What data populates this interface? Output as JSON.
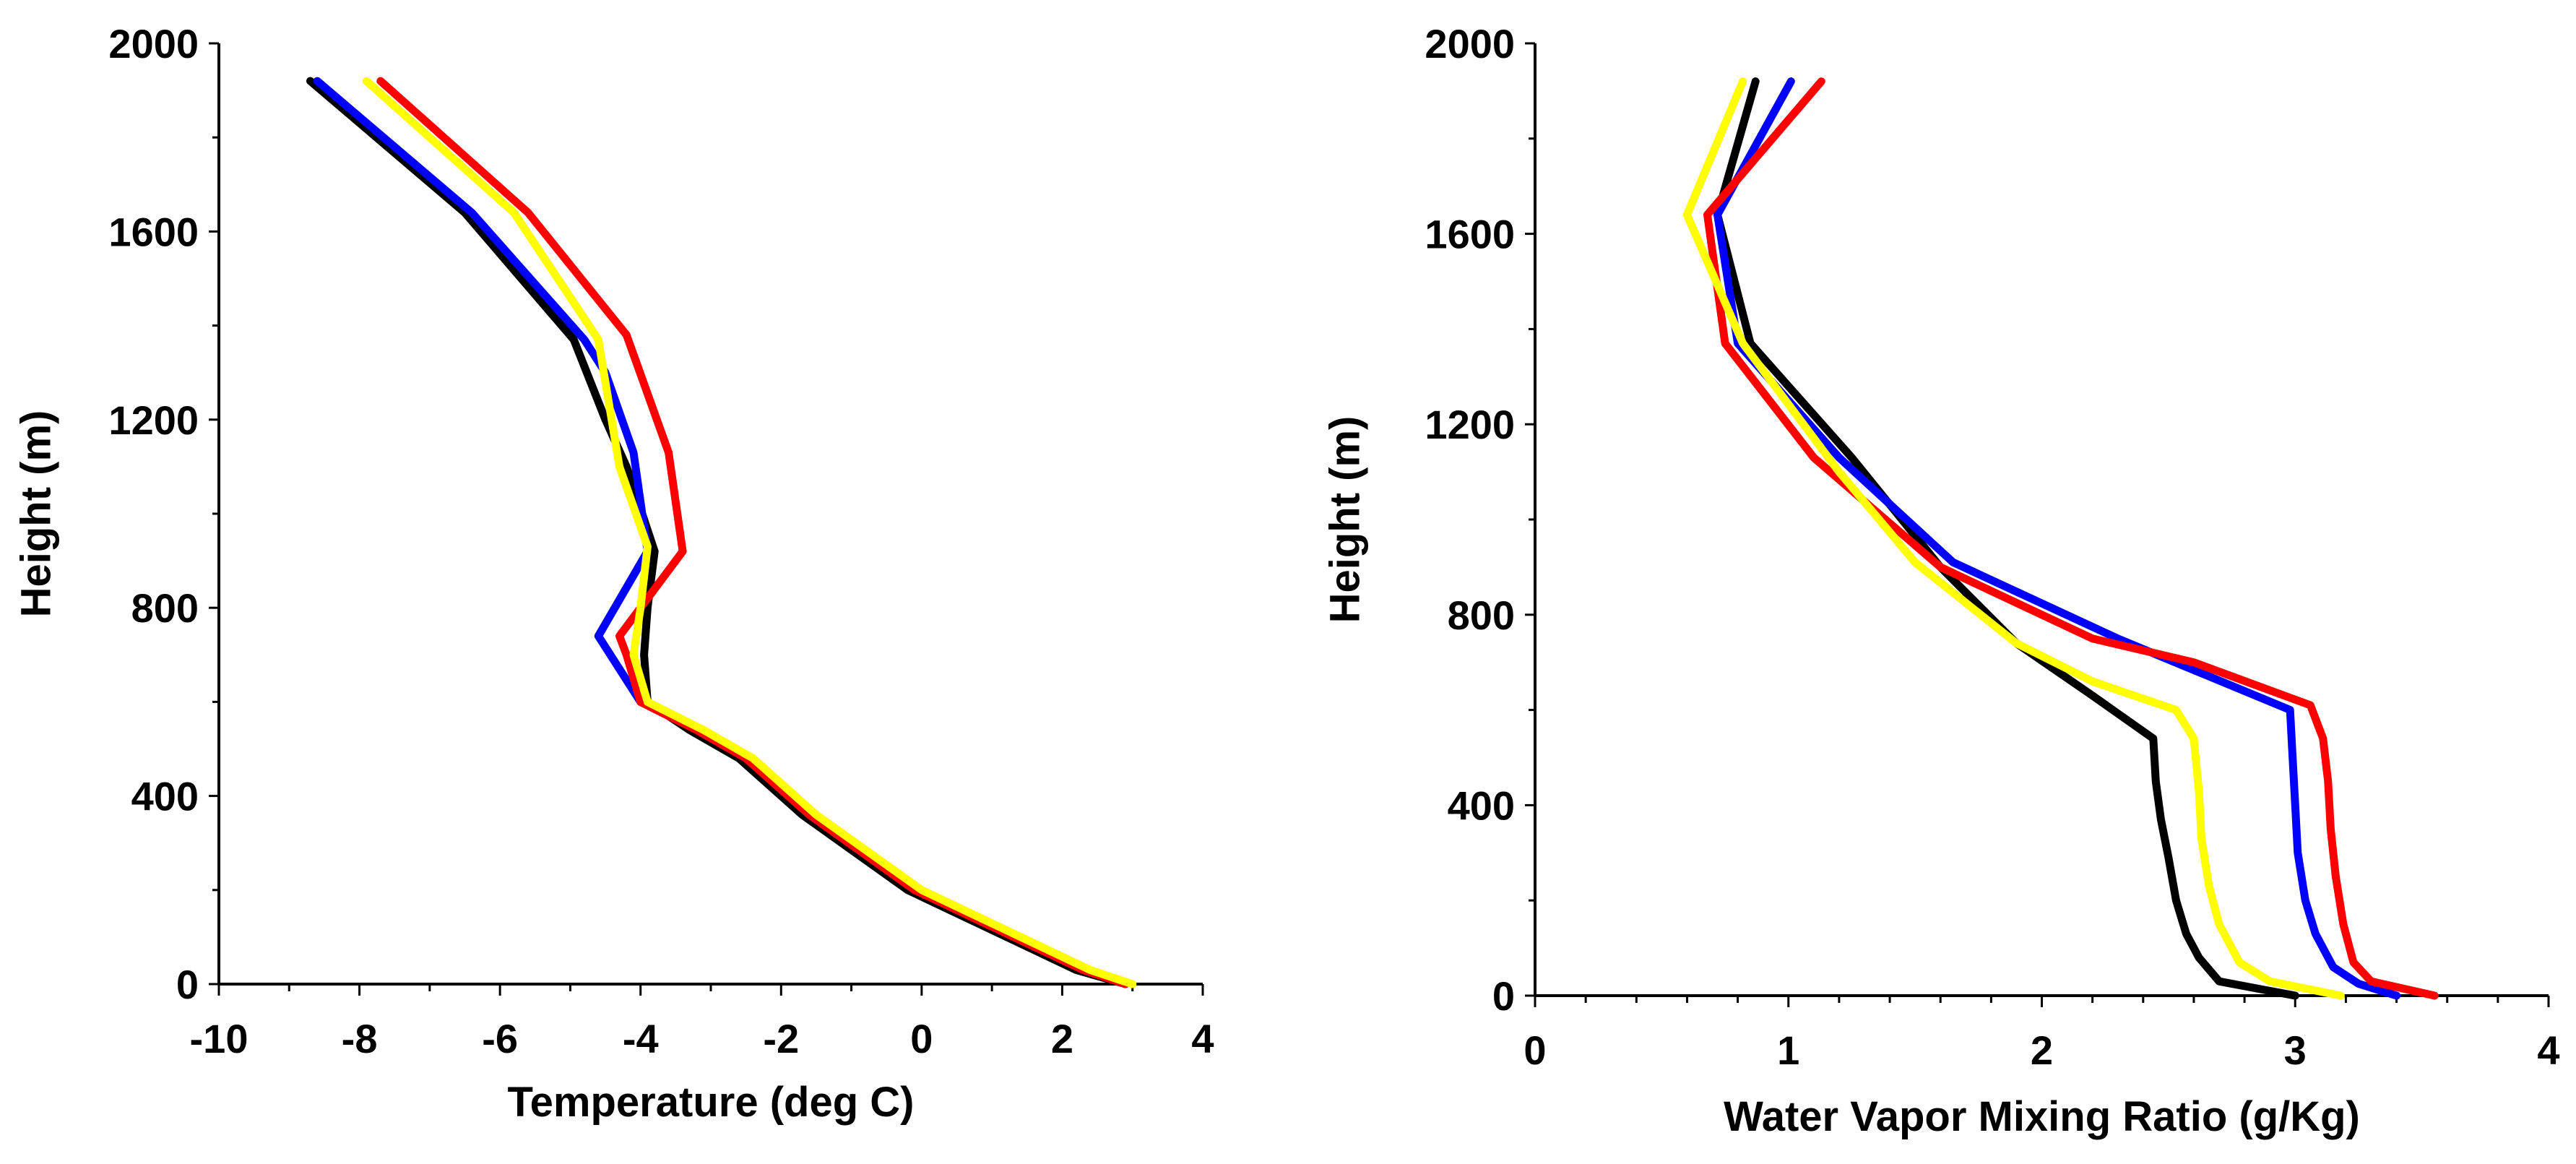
{
  "chart_data": [
    {
      "type": "line",
      "title": "",
      "xlabel": "Temperature (deg C)",
      "ylabel": "Height (m)",
      "xlim": [
        -10,
        4
      ],
      "ylim": [
        0,
        2000
      ],
      "xticks": [
        -10,
        -8,
        -6,
        -4,
        -2,
        0,
        2,
        4
      ],
      "yticks": [
        0,
        400,
        800,
        1200,
        1600,
        2000
      ],
      "grid": false,
      "series": [
        {
          "name": "black",
          "color": "#000000",
          "points": [
            [
              2.9,
              0
            ],
            [
              2.2,
              30
            ],
            [
              -0.2,
              200
            ],
            [
              -1.7,
              360
            ],
            [
              -2.6,
              480
            ],
            [
              -3.3,
              540
            ],
            [
              -3.9,
              600
            ],
            [
              -3.95,
              700
            ],
            [
              -3.9,
              800
            ],
            [
              -3.8,
              920
            ],
            [
              -4.2,
              1100
            ],
            [
              -4.5,
              1200
            ],
            [
              -4.95,
              1370
            ],
            [
              -6.5,
              1640
            ],
            [
              -8.7,
              1920
            ]
          ]
        },
        {
          "name": "blue",
          "color": "#0000ff",
          "points": [
            [
              2.9,
              0
            ],
            [
              2.3,
              30
            ],
            [
              -0.1,
              200
            ],
            [
              -1.6,
              360
            ],
            [
              -2.5,
              480
            ],
            [
              -3.2,
              540
            ],
            [
              -4.0,
              600
            ],
            [
              -4.6,
              740
            ],
            [
              -3.9,
              920
            ],
            [
              -4.1,
              1130
            ],
            [
              -4.5,
              1300
            ],
            [
              -4.8,
              1370
            ],
            [
              -6.4,
              1640
            ],
            [
              -8.6,
              1920
            ]
          ]
        },
        {
          "name": "red",
          "color": "#ff0000",
          "points": [
            [
              2.9,
              0
            ],
            [
              2.3,
              30
            ],
            [
              -0.1,
              200
            ],
            [
              -1.6,
              360
            ],
            [
              -2.5,
              480
            ],
            [
              -3.2,
              540
            ],
            [
              -4.0,
              600
            ],
            [
              -4.2,
              700
            ],
            [
              -4.3,
              740
            ],
            [
              -3.4,
              920
            ],
            [
              -3.6,
              1130
            ],
            [
              -4.2,
              1380
            ],
            [
              -5.6,
              1640
            ],
            [
              -7.7,
              1920
            ]
          ]
        },
        {
          "name": "yellow",
          "color": "#ffff00",
          "points": [
            [
              3.0,
              0
            ],
            [
              2.4,
              30
            ],
            [
              0.0,
              200
            ],
            [
              -1.5,
              360
            ],
            [
              -2.4,
              480
            ],
            [
              -3.1,
              540
            ],
            [
              -3.9,
              600
            ],
            [
              -4.1,
              700
            ],
            [
              -4.0,
              800
            ],
            [
              -3.9,
              930
            ],
            [
              -4.3,
              1100
            ],
            [
              -4.6,
              1370
            ],
            [
              -5.8,
              1640
            ],
            [
              -7.9,
              1920
            ]
          ]
        }
      ]
    },
    {
      "type": "line",
      "title": "",
      "xlabel": "Water Vapor Mixing Ratio (g/Kg)",
      "ylabel": "Height (m)",
      "xlim": [
        0,
        4
      ],
      "ylim": [
        0,
        2000
      ],
      "xticks": [
        0,
        1,
        2,
        3,
        4
      ],
      "yticks": [
        0,
        400,
        800,
        1200,
        1600,
        2000
      ],
      "grid": false,
      "series": [
        {
          "name": "black",
          "color": "#000000",
          "points": [
            [
              3.0,
              0
            ],
            [
              2.85,
              15
            ],
            [
              2.7,
              30
            ],
            [
              2.62,
              80
            ],
            [
              2.57,
              130
            ],
            [
              2.53,
              200
            ],
            [
              2.5,
              290
            ],
            [
              2.47,
              370
            ],
            [
              2.45,
              450
            ],
            [
              2.44,
              540
            ],
            [
              2.2,
              630
            ],
            [
              1.9,
              740
            ],
            [
              1.6,
              900
            ],
            [
              1.25,
              1130
            ],
            [
              0.85,
              1370
            ],
            [
              0.72,
              1640
            ],
            [
              0.87,
              1920
            ]
          ]
        },
        {
          "name": "blue",
          "color": "#0000ff",
          "points": [
            [
              3.4,
              0
            ],
            [
              3.25,
              25
            ],
            [
              3.15,
              60
            ],
            [
              3.08,
              130
            ],
            [
              3.04,
              200
            ],
            [
              3.01,
              300
            ],
            [
              3.0,
              400
            ],
            [
              2.99,
              500
            ],
            [
              2.98,
              600
            ],
            [
              2.3,
              750
            ],
            [
              1.65,
              910
            ],
            [
              1.2,
              1130
            ],
            [
              0.8,
              1370
            ],
            [
              0.72,
              1640
            ],
            [
              1.01,
              1920
            ]
          ]
        },
        {
          "name": "red",
          "color": "#ff0000",
          "points": [
            [
              3.55,
              0
            ],
            [
              3.3,
              30
            ],
            [
              3.23,
              70
            ],
            [
              3.19,
              150
            ],
            [
              3.16,
              250
            ],
            [
              3.14,
              350
            ],
            [
              3.13,
              450
            ],
            [
              3.11,
              540
            ],
            [
              3.06,
              610
            ],
            [
              2.6,
              700
            ],
            [
              2.2,
              750
            ],
            [
              1.6,
              900
            ],
            [
              1.1,
              1130
            ],
            [
              0.75,
              1370
            ],
            [
              0.68,
              1640
            ],
            [
              1.13,
              1920
            ]
          ]
        },
        {
          "name": "yellow",
          "color": "#ffff00",
          "points": [
            [
              3.18,
              0
            ],
            [
              2.9,
              30
            ],
            [
              2.78,
              70
            ],
            [
              2.7,
              150
            ],
            [
              2.66,
              230
            ],
            [
              2.63,
              330
            ],
            [
              2.62,
              430
            ],
            [
              2.6,
              540
            ],
            [
              2.53,
              600
            ],
            [
              2.2,
              660
            ],
            [
              1.9,
              740
            ],
            [
              1.5,
              910
            ],
            [
              1.2,
              1100
            ],
            [
              0.82,
              1370
            ],
            [
              0.6,
              1640
            ],
            [
              0.82,
              1920
            ]
          ]
        }
      ]
    }
  ]
}
